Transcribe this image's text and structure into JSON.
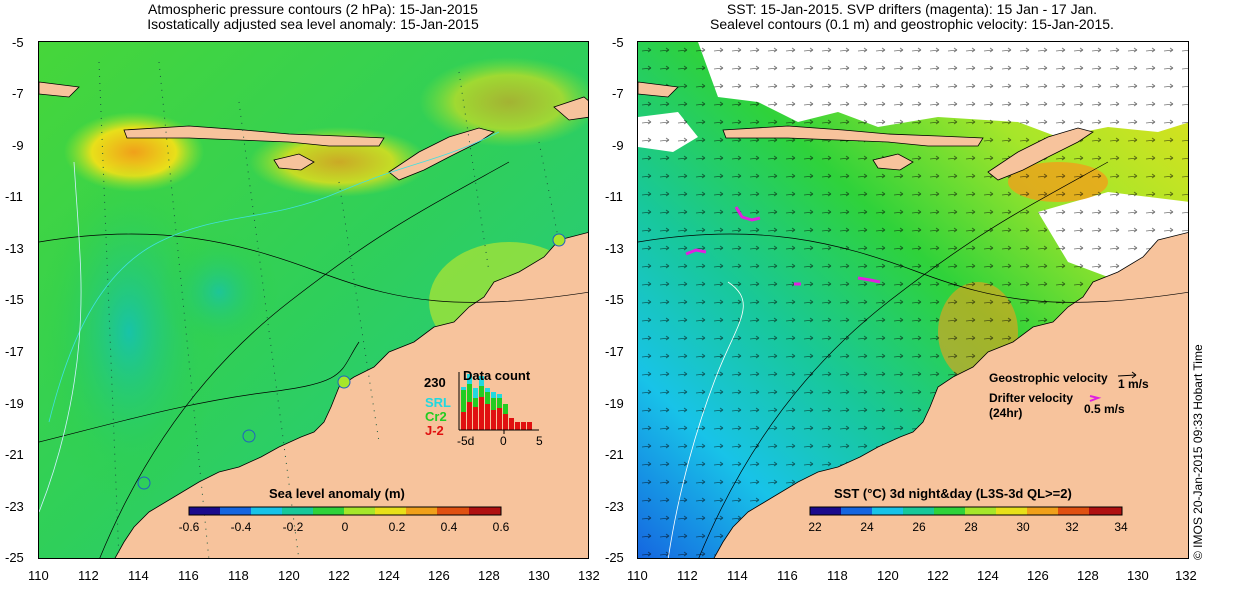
{
  "left_panel": {
    "title_line1": "Atmospheric pressure contours (2 hPa): 15-Jan-2015",
    "title_line2": "Isostatically adjusted sea level anomaly: 15-Jan-2015",
    "colorbar": {
      "label": "Sea level anomaly (m)",
      "ticks": [
        "-0.6",
        "-0.4",
        "-0.2",
        "0",
        "0.2",
        "0.4",
        "0.6"
      ]
    },
    "data_count": {
      "title": "Data count",
      "max_label": "230",
      "series_labels": [
        "SRL",
        "Cr2",
        "J-2"
      ],
      "series_colors": [
        "#22d8e0",
        "#22cc22",
        "#e01010"
      ],
      "x_ticks": [
        "-5d",
        "0",
        "5"
      ]
    }
  },
  "right_panel": {
    "title_line1": "SST: 15-Jan-2015. SVP drifters (magenta): 15 Jan - 17 Jan.",
    "title_line2": "Sealevel contours (0.1 m) and geostrophic velocity: 15-Jan-2015.",
    "colorbar": {
      "label": "SST (°C) 3d night&day (L3S-3d QL>=2)",
      "ticks": [
        "22",
        "24",
        "26",
        "28",
        "30",
        "32",
        "34"
      ]
    },
    "legend": {
      "geostrophic_label": "Geostrophic velocity",
      "geostrophic_scale": "1 m/s",
      "drifter_label_1": "Drifter velocity",
      "drifter_label_2": "(24hr)",
      "drifter_scale": "0.5 m/s"
    }
  },
  "axes": {
    "x_ticks": [
      "110",
      "112",
      "114",
      "116",
      "118",
      "120",
      "122",
      "124",
      "126",
      "128",
      "130",
      "132"
    ],
    "y_ticks": [
      "-5",
      "-7",
      "-9",
      "-11",
      "-13",
      "-15",
      "-17",
      "-19",
      "-21",
      "-23",
      "-25"
    ],
    "lon_range": [
      110,
      132
    ],
    "lat_range": [
      -25,
      -5
    ]
  },
  "credit": "© IMOS 20-Jan-2015 09:33 Hobart Time",
  "colors": {
    "land": "#f7c39c",
    "sla_scale": [
      "#1a0a8c",
      "#1565e0",
      "#18c3e8",
      "#18c89a",
      "#2fd23a",
      "#a6e62a",
      "#e8e01a",
      "#f0a01a",
      "#e05010",
      "#b01010"
    ],
    "sst_scale": [
      "#1a0a8c",
      "#1565e0",
      "#18c3e8",
      "#18c89a",
      "#2fd23a",
      "#a6e62a",
      "#e8e01a",
      "#f0a01a",
      "#e05010",
      "#b01010"
    ],
    "drifter": "#e020e0"
  }
}
